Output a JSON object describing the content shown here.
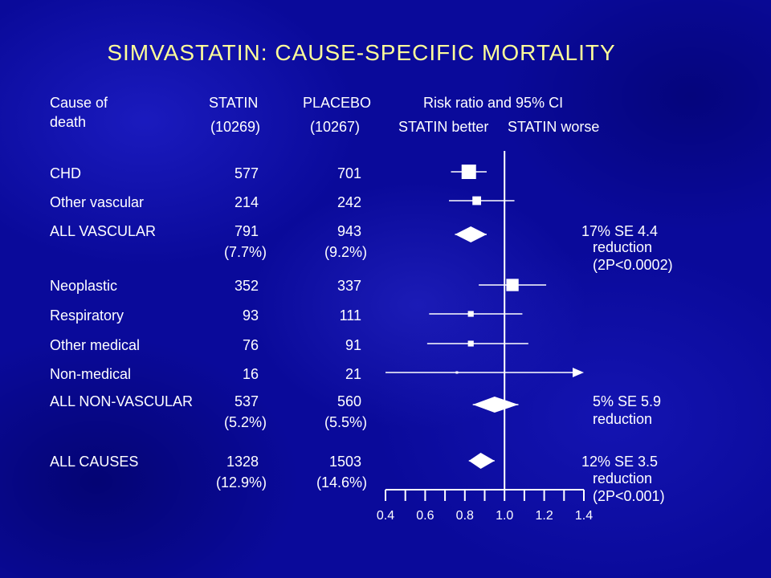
{
  "title": "SIMVASTATIN: CAUSE-SPECIFIC MORTALITY",
  "headers": {
    "cause_line1": "Cause of",
    "cause_line2": "death",
    "statin": "STATIN",
    "statin_n": "(10269)",
    "placebo": "PLACEBO",
    "placebo_n": "(10267)",
    "risk": "Risk ratio and 95% CI",
    "better": "STATIN better",
    "worse": "STATIN worse"
  },
  "rows": [
    {
      "cause": "CHD",
      "statin": "577",
      "placebo": "701",
      "statin_pct": "",
      "placebo_pct": ""
    },
    {
      "cause": "Other vascular",
      "statin": "214",
      "placebo": "242",
      "statin_pct": "",
      "placebo_pct": ""
    },
    {
      "cause": "ALL VASCULAR",
      "statin": "791",
      "placebo": "943",
      "statin_pct": "(7.7%)",
      "placebo_pct": "(9.2%)"
    },
    {
      "cause": "Neoplastic",
      "statin": "352",
      "placebo": "337",
      "statin_pct": "",
      "placebo_pct": ""
    },
    {
      "cause": "Respiratory",
      "statin": "93",
      "placebo": "111",
      "statin_pct": "",
      "placebo_pct": ""
    },
    {
      "cause": "Other medical",
      "statin": "76",
      "placebo": "91",
      "statin_pct": "",
      "placebo_pct": ""
    },
    {
      "cause": "Non-medical",
      "statin": "16",
      "placebo": "21",
      "statin_pct": "",
      "placebo_pct": ""
    },
    {
      "cause": "ALL NON-VASCULAR",
      "statin": "537",
      "placebo": "560",
      "statin_pct": "(5.2%)",
      "placebo_pct": "(5.5%)"
    },
    {
      "cause": "ALL CAUSES",
      "statin": "1328",
      "placebo": "1503",
      "statin_pct": "(12.9%)",
      "placebo_pct": "(14.6%)"
    }
  ],
  "annotations": {
    "vascular": [
      "17% SE 4.4",
      "reduction",
      "(2P<0.0002)"
    ],
    "nonvascular": [
      "5% SE 5.9",
      "reduction"
    ],
    "all": [
      "12% SE 3.5",
      "reduction",
      "(2P<0.001)"
    ]
  },
  "colors": {
    "background": "#0a0a9a",
    "title": "#ffff99",
    "text": "#ffffff"
  },
  "chart_data": {
    "type": "forest",
    "title": "SIMVASTATIN: CAUSE-SPECIFIC MORTALITY",
    "xlabel": "",
    "xlim": [
      0.4,
      1.4
    ],
    "xticks": [
      0.4,
      0.6,
      0.8,
      1.0,
      1.2,
      1.4
    ],
    "xtick_labels": [
      "0.4",
      "0.6",
      "0.8",
      "1.0",
      "1.2",
      "1.4"
    ],
    "minor_tick_step": 0.1,
    "reference_line": 1.0,
    "series": [
      {
        "label": "CHD",
        "estimate": 0.82,
        "lower": 0.73,
        "upper": 0.91,
        "marker": "square",
        "weight": 1.0
      },
      {
        "label": "Other vascular",
        "estimate": 0.86,
        "lower": 0.72,
        "upper": 1.05,
        "marker": "square",
        "weight": 0.6
      },
      {
        "label": "ALL VASCULAR",
        "estimate": 0.83,
        "lower": 0.75,
        "upper": 0.91,
        "marker": "diamond"
      },
      {
        "label": "Neoplastic",
        "estimate": 1.04,
        "lower": 0.87,
        "upper": 1.21,
        "marker": "square",
        "weight": 0.85
      },
      {
        "label": "Respiratory",
        "estimate": 0.83,
        "lower": 0.62,
        "upper": 1.09,
        "marker": "square",
        "weight": 0.4
      },
      {
        "label": "Other medical",
        "estimate": 0.83,
        "lower": 0.61,
        "upper": 1.12,
        "marker": "square",
        "weight": 0.4
      },
      {
        "label": "Non-medical",
        "estimate": 0.76,
        "lower": 0.4,
        "upper": 1.4,
        "marker": "square",
        "weight": 0.15,
        "arrow_upper": true
      },
      {
        "label": "ALL NON-VASCULAR",
        "estimate": 0.95,
        "lower": 0.84,
        "upper": 1.07,
        "marker": "diamond"
      },
      {
        "label": "ALL CAUSES",
        "estimate": 0.88,
        "lower": 0.82,
        "upper": 0.95,
        "marker": "diamond"
      }
    ]
  }
}
